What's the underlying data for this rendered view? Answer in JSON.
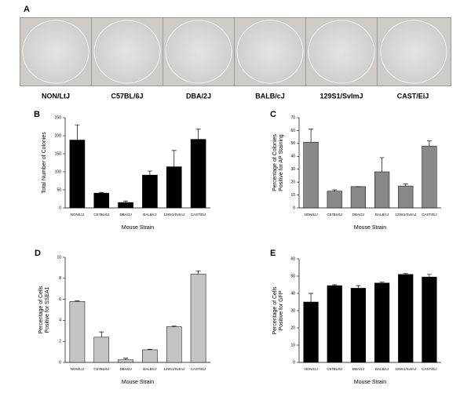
{
  "panel_a": {
    "panel": "A",
    "strains": [
      "NON/LtJ",
      "C57BL/6J",
      "DBA/2J",
      "BALB/cJ",
      "129S1/SvImJ",
      "CAST/EiJ"
    ]
  },
  "chart_data": [
    {
      "type": "bar",
      "panel": "B",
      "ylabel": [
        "Total Number of Colonies"
      ],
      "xlabel": "Mouse Strain",
      "categories": [
        "NON/LtJ",
        "C57BL/6J",
        "DBA/2J",
        "BALB/cJ",
        "129S1/SvImJ",
        "CAST/EiJ"
      ],
      "values": [
        188,
        41,
        15,
        91,
        114,
        190
      ],
      "errors": [
        42,
        2,
        4,
        11,
        45,
        28
      ],
      "color": "#000000",
      "ylim": [
        0,
        250
      ],
      "yticks": [
        0,
        50,
        100,
        150,
        200,
        250
      ]
    },
    {
      "type": "bar",
      "panel": "C",
      "ylabel": [
        "Percentage of Colonies",
        "Positive for AP Staining"
      ],
      "xlabel": "Mouse Strain",
      "categories": [
        "NON/LtJ",
        "C57BL/6J",
        "DBA/2J",
        "BALB/cJ",
        "129S1/SvImJ",
        "CAST/EiJ"
      ],
      "values": [
        51,
        13,
        16.5,
        28,
        17,
        48
      ],
      "errors": [
        10,
        1,
        0,
        11,
        1.5,
        4
      ],
      "color": "#888888",
      "ylim": [
        0,
        70
      ],
      "yticks": [
        0,
        10,
        20,
        30,
        40,
        50,
        60,
        70
      ]
    },
    {
      "type": "bar",
      "panel": "D",
      "ylabel": [
        "Percentage of Cells",
        "Positive for SSEA1"
      ],
      "xlabel": "Mouse Strain",
      "categories": [
        "NON/LtJ",
        "C57BL/6J",
        "DBA/2J",
        "BALB/cJ",
        "129S1/SvImJ",
        "CAST/EiJ"
      ],
      "values": [
        5.8,
        2.4,
        0.25,
        1.2,
        3.4,
        8.4
      ],
      "errors": [
        0.05,
        0.5,
        0.15,
        0.05,
        0.05,
        0.3
      ],
      "color": "#c4c4c4",
      "ylim": [
        0,
        10
      ],
      "yticks": [
        0,
        2,
        4,
        6,
        8,
        10
      ]
    },
    {
      "type": "bar",
      "panel": "E",
      "ylabel": [
        "Percentage of Cells",
        "Positive for GFP"
      ],
      "xlabel": "Mouse Strain",
      "categories": [
        "NON/LtJ",
        "C57BL/6J",
        "DBA/2J",
        "BALB/cJ",
        "129S1/SvImJ",
        "CAST/EiJ"
      ],
      "values": [
        35,
        44.5,
        43,
        46,
        51,
        49.5
      ],
      "errors": [
        5,
        0.5,
        1.5,
        0.5,
        0.5,
        1.5
      ],
      "color": "#000000",
      "ylim": [
        0,
        60
      ],
      "yticks": [
        0,
        10,
        20,
        30,
        40,
        50,
        60
      ]
    }
  ]
}
